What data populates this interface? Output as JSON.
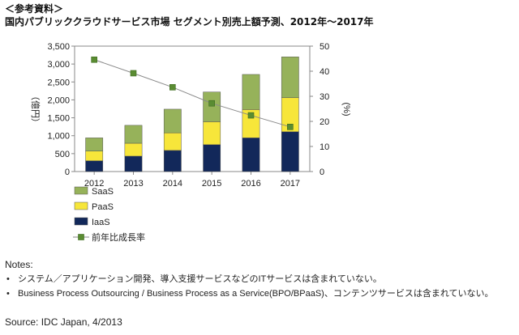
{
  "header": {
    "ref_label": "＜参考資料＞",
    "title": "国内パブリッククラウドサービス市場 セグメント別売上額予測、2012年〜2017年"
  },
  "chart_data": {
    "type": "bar",
    "stacked": true,
    "categories": [
      "2012",
      "2013",
      "2014",
      "2015",
      "2016",
      "2017"
    ],
    "series": [
      {
        "name": "IaaS",
        "color": "#12285a",
        "values": [
          300,
          430,
          590,
          750,
          940,
          1110
        ]
      },
      {
        "name": "PaaS",
        "color": "#f7e63a",
        "values": [
          270,
          360,
          490,
          640,
          790,
          950
        ]
      },
      {
        "name": "SaaS",
        "color": "#96b25a",
        "values": [
          370,
          500,
          660,
          830,
          980,
          1140
        ]
      }
    ],
    "line_series": {
      "name": "前年比成長率",
      "color": "#5a8c32",
      "axis": "right",
      "values": [
        44.6,
        39.2,
        33.6,
        27.2,
        22.4,
        17.8
      ]
    },
    "ylabel": "（億円）",
    "ylim": [
      0,
      3500
    ],
    "yticks": [
      "0",
      "500",
      "1,000",
      "1,500",
      "2,000",
      "2,500",
      "3,000",
      "3,500"
    ],
    "y2label": "(%)",
    "y2lim": [
      0,
      50
    ],
    "y2ticks": [
      "0",
      "10",
      "20",
      "30",
      "40",
      "50"
    ],
    "legend": [
      "SaaS",
      "PaaS",
      "IaaS",
      "前年比成長率"
    ]
  },
  "notes": {
    "heading": "Notes:",
    "items": [
      "システム／アプリケーション開発、導入支援サービスなどのITサービスは含まれていない。",
      "Business Process Outsourcing / Business Process as a Service(BPO/BPaaS)、コンテンツサービスは含まれていない。"
    ],
    "bullet": "•",
    "source": "Source: IDC Japan, 4/2013"
  }
}
